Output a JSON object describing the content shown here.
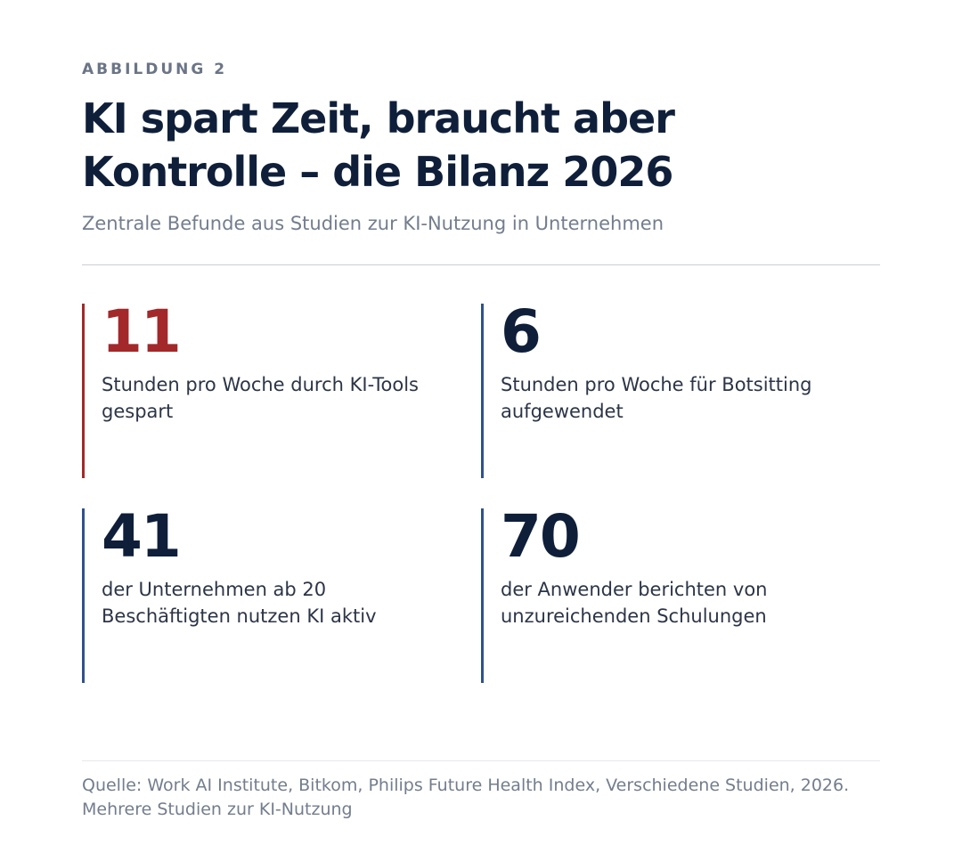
{
  "header": {
    "eyebrow": "ABBILDUNG 2",
    "title": "KI spart Zeit, braucht aber Kontrolle – die Bilanz 2026",
    "subtitle": "Zentrale Befunde aus Studien zur KI-Nutzung in Unternehmen"
  },
  "stats": [
    {
      "value": "11",
      "description": "Stunden pro Woche durch KI-Tools gespart",
      "accent": true
    },
    {
      "value": "6",
      "description": "Stunden pro Woche für Botsitting aufgewendet",
      "accent": false
    },
    {
      "value": "41",
      "description": "der Unternehmen ab 20 Beschäftigten nutzen KI aktiv",
      "accent": false
    },
    {
      "value": "70",
      "description": "der Anwender berichten von unzureichenden Schulungen",
      "accent": false
    }
  ],
  "footer": {
    "source": "Quelle: Work AI Institute, Bitkom, Philips Future Health Index, Verschiedene Studien, 2026. Mehrere Studien zur KI-Nutzung"
  },
  "colors": {
    "accent_red": "#a3282a",
    "accent_blue": "#2f528c",
    "heading": "#0f1f3a",
    "muted": "#737d8e"
  }
}
